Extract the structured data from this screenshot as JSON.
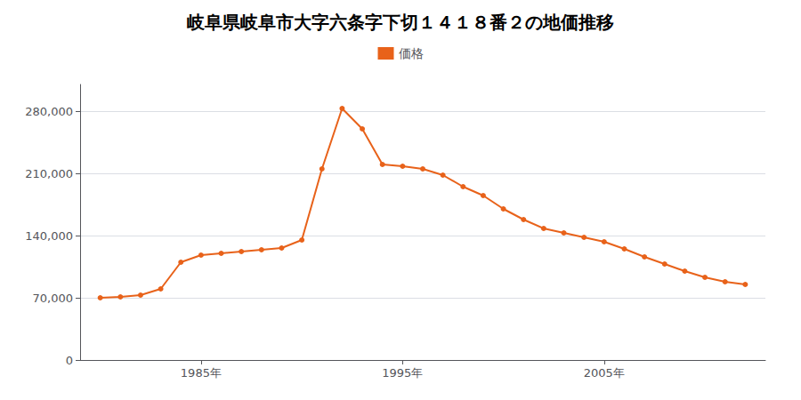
{
  "chart_data": {
    "type": "line",
    "title": "岐阜県岐阜市大字六条字下切１４１８番２の地価推移",
    "x": [
      1980,
      1981,
      1982,
      1983,
      1984,
      1985,
      1986,
      1987,
      1988,
      1989,
      1990,
      1991,
      1992,
      1993,
      1994,
      1995,
      1996,
      1997,
      1998,
      1999,
      2000,
      2001,
      2002,
      2003,
      2004,
      2005,
      2006,
      2007,
      2008,
      2009,
      2010,
      2011,
      2012
    ],
    "series": [
      {
        "name": "価格",
        "color": "#e8621a",
        "marker": "circle",
        "values": [
          70000,
          71000,
          73000,
          80000,
          110000,
          118000,
          120000,
          122000,
          124000,
          126000,
          135000,
          215000,
          283000,
          260000,
          220000,
          218000,
          215000,
          208000,
          195000,
          185000,
          170000,
          158000,
          148000,
          143000,
          138000,
          133000,
          125000,
          116000,
          108000,
          100000,
          93000,
          88000,
          85000
        ]
      }
    ],
    "xlim": [
      1979,
      2013
    ],
    "xticks": [
      {
        "value": 1985,
        "label": "1985年"
      },
      {
        "value": 1995,
        "label": "1995年"
      },
      {
        "value": 2005,
        "label": "2005年"
      }
    ],
    "ylim": [
      0,
      310000
    ],
    "yticks": [
      0,
      {
        "value": 70000,
        "label": "70,000"
      },
      {
        "value": 140000,
        "label": "140,000"
      },
      {
        "value": 210000,
        "label": "210,000"
      },
      {
        "value": 280000,
        "label": "280,000"
      }
    ],
    "grid": true,
    "legend": "top"
  }
}
